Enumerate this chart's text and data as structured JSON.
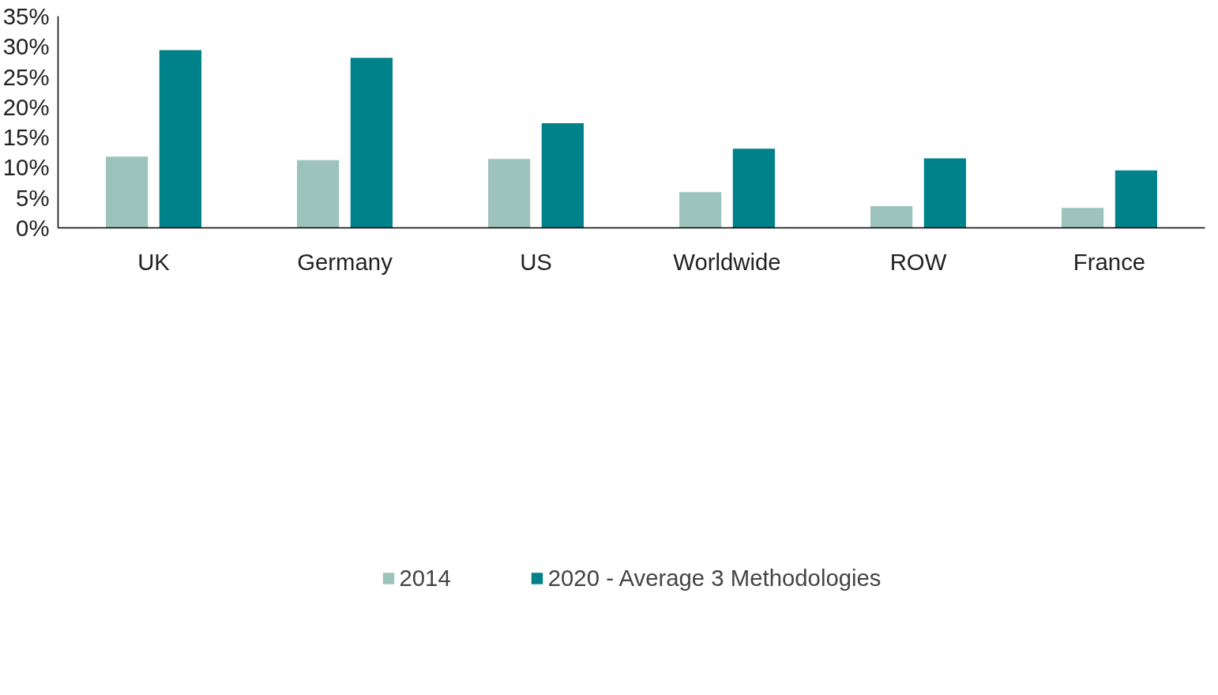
{
  "chart_data": {
    "type": "bar",
    "categories": [
      "UK",
      "Germany",
      "US",
      "Worldwide",
      "ROW",
      "France"
    ],
    "series": [
      {
        "name": "2014",
        "color": "#9dc3bd",
        "values": [
          11.8,
          11.2,
          11.4,
          5.9,
          3.6,
          3.3
        ]
      },
      {
        "name": "2020 - Average 3 Methodologies",
        "color": "#00828a",
        "values": [
          29.4,
          28.1,
          17.3,
          13.1,
          11.5,
          9.5
        ]
      }
    ],
    "ylim": [
      0,
      35
    ],
    "yticks": [
      {
        "value": 0,
        "label": "0%"
      },
      {
        "value": 5,
        "label": "5%"
      },
      {
        "value": 10,
        "label": "10%"
      },
      {
        "value": 15,
        "label": "15%"
      },
      {
        "value": 20,
        "label": "20%"
      },
      {
        "value": 25,
        "label": "25%"
      },
      {
        "value": 30,
        "label": "30%"
      },
      {
        "value": 35,
        "label": "35%"
      }
    ],
    "grid": false,
    "legend": "bottom"
  }
}
